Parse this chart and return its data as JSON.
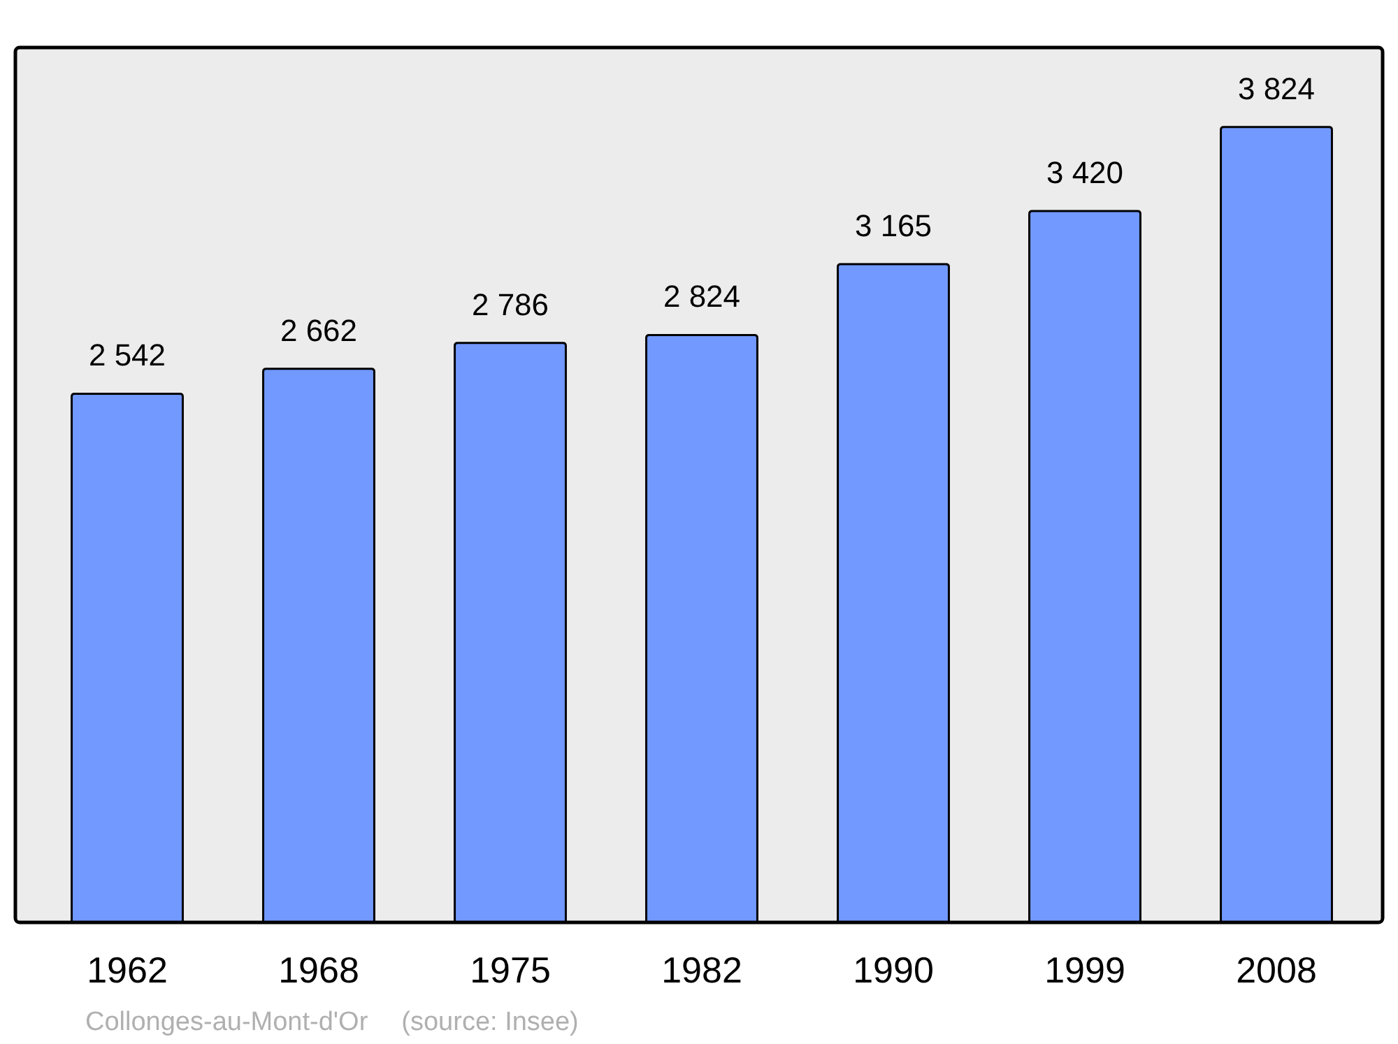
{
  "chart_data": {
    "type": "bar",
    "categories": [
      "1962",
      "1968",
      "1975",
      "1982",
      "1990",
      "1999",
      "2008"
    ],
    "values": [
      2542,
      2662,
      2786,
      2824,
      3165,
      3420,
      3824
    ],
    "value_labels": [
      "2 542",
      "2 662",
      "2 786",
      "2 824",
      "3 165",
      "3 420",
      "3 824"
    ],
    "color": "#7299ff",
    "annotations": [
      "Collonges-au-Mont-d'Or",
      "(source: Insee)"
    ]
  }
}
